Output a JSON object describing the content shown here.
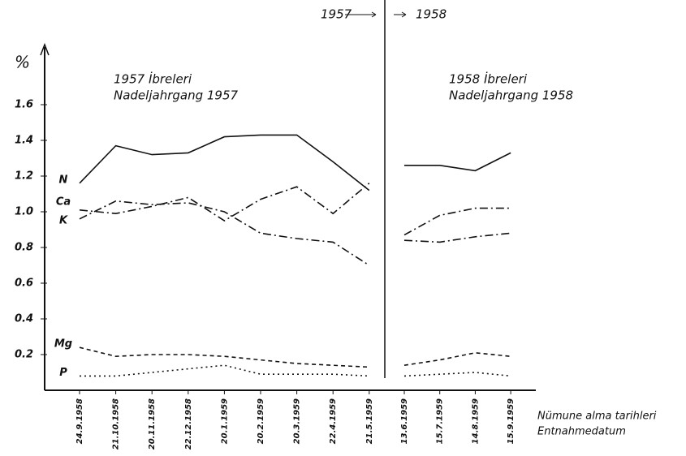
{
  "chart_data": [
    {
      "type": "line",
      "period": "1957",
      "title": "1957 İbreleri",
      "subtitle": "Nadeljahrgang 1957",
      "ylabel": "%",
      "categories": [
        "24.9.1958",
        "21.10.1958",
        "20.11.1958",
        "22.12.1958",
        "20.1.1959",
        "20.2.1959",
        "20.3.1959",
        "22.4.1959",
        "21.5.1959"
      ],
      "ylim": [
        0,
        1.9
      ],
      "yticks": [
        0.2,
        0.4,
        0.6,
        0.8,
        {
          "value": 1,
          "label": "1.0"
        },
        1.2,
        1.4,
        1.6
      ],
      "series": [
        {
          "name": "N",
          "color": "#111111",
          "dash": "none",
          "values": [
            1.16,
            1.37,
            1.32,
            1.33,
            1.42,
            1.43,
            1.43,
            1.28,
            1.12
          ]
        },
        {
          "name": "Ca",
          "color": "#111111",
          "dash": "10 4 2 4",
          "values": [
            1.01,
            0.99,
            1.03,
            1.08,
            0.95,
            1.07,
            1.14,
            0.99,
            1.16
          ]
        },
        {
          "name": "K",
          "color": "#111111",
          "dash": "10 4 2 4",
          "values": [
            0.96,
            1.06,
            1.04,
            1.05,
            1.0,
            0.88,
            0.85,
            0.83,
            0.7
          ]
        },
        {
          "name": "Mg",
          "color": "#111111",
          "dash": "5 4",
          "values": [
            0.24,
            0.19,
            0.2,
            0.2,
            0.19,
            0.17,
            0.15,
            0.14,
            0.13
          ]
        },
        {
          "name": "P",
          "color": "#111111",
          "dash": "2 4",
          "values": [
            0.08,
            0.08,
            0.1,
            0.12,
            0.14,
            0.09,
            0.09,
            0.09,
            0.08
          ]
        }
      ]
    },
    {
      "type": "line",
      "period": "1958",
      "title": "1958 İbreleri",
      "subtitle": "Nadeljahrgang 1958",
      "xlabel": [
        "Nümune alma tarihleri",
        "Entnahmedatum"
      ],
      "categories": [
        "13.6.1959",
        "15.7.1959",
        "14.8.1959",
        "15.9.1959"
      ],
      "ylim": [
        0,
        1.9
      ],
      "series": [
        {
          "color": "#111111",
          "dash": "none",
          "values": [
            1.26,
            1.26,
            1.23,
            1.33
          ]
        },
        {
          "color": "#111111",
          "dash": "10 4 2 4",
          "values": [
            0.87,
            0.98,
            1.02,
            1.02
          ]
        },
        {
          "color": "#111111",
          "dash": "10 4 2 4",
          "values": [
            0.84,
            0.83,
            0.86,
            0.88
          ]
        },
        {
          "color": "#111111",
          "dash": "5 4",
          "values": [
            0.14,
            0.17,
            0.21,
            0.19
          ]
        },
        {
          "color": "#111111",
          "dash": "2 4",
          "values": [
            0.08,
            0.09,
            0.1,
            0.08
          ]
        }
      ]
    }
  ]
}
